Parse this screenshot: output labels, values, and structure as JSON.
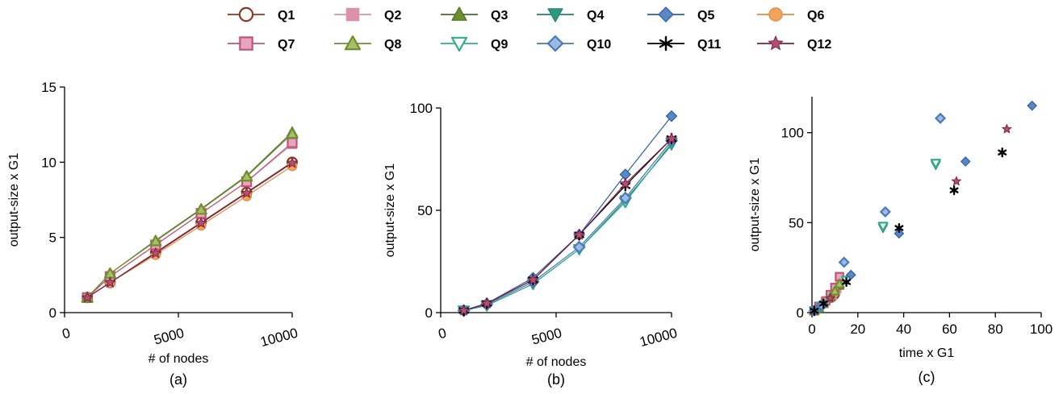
{
  "legend": [
    {
      "label": "Q1",
      "color": "#8b3a1f",
      "fill": "#c0654a",
      "marker": "circle-open",
      "line": true
    },
    {
      "label": "Q2",
      "color": "#d992a8",
      "fill": "#d992a8",
      "marker": "square",
      "line": true
    },
    {
      "label": "Q3",
      "color": "#4d6b2a",
      "fill": "#6f8f2f",
      "marker": "triangle",
      "line": true
    },
    {
      "label": "Q4",
      "color": "#21806b",
      "fill": "#2a9a7e",
      "marker": "triangle-down",
      "line": true
    },
    {
      "label": "Q5",
      "color": "#2f5ea8",
      "fill": "#5a86c4",
      "marker": "diamond",
      "line": true
    },
    {
      "label": "Q6",
      "color": "#e08a42",
      "fill": "#f2a35a",
      "marker": "circle",
      "line": true
    },
    {
      "label": "Q7",
      "color": "#c0547a",
      "fill": "#e8a6be",
      "marker": "square-open",
      "line": true
    },
    {
      "label": "Q8",
      "color": "#6f8f2f",
      "fill": "#a8be6a",
      "marker": "triangle-open",
      "line": true
    },
    {
      "label": "Q9",
      "color": "#2fae8e",
      "fill": "#ffffff",
      "marker": "triangle-down-open",
      "line": true
    },
    {
      "label": "Q10",
      "color": "#4a78bb",
      "fill": "#9bbbe4",
      "marker": "diamond-open",
      "line": true
    },
    {
      "label": "Q11",
      "color": "#000000",
      "fill": "#000000",
      "marker": "asterisk",
      "line": true
    },
    {
      "label": "Q12",
      "color": "#7a1f45",
      "fill": "#b4506e",
      "marker": "star",
      "line": true
    }
  ],
  "chart_data": [
    {
      "type": "line",
      "panel_label": "(a)",
      "xlabel": "# of nodes",
      "ylabel": "output-size x G1",
      "xlim": [
        0,
        10000
      ],
      "ylim": [
        0,
        15
      ],
      "xticks": [
        0,
        5000,
        10000
      ],
      "xtick_labels": [
        "0",
        "5000",
        "10000"
      ],
      "yticks": [
        0,
        5,
        10,
        15
      ],
      "ytick_labels": [
        "0",
        "5",
        "10",
        "15"
      ],
      "x": [
        1000,
        2000,
        4000,
        6000,
        8000,
        10000
      ],
      "series": [
        {
          "name": "Q1",
          "values": [
            1,
            2,
            4,
            6,
            8,
            10
          ]
        },
        {
          "name": "Q2",
          "values": [
            1,
            2.4,
            4.5,
            6.6,
            8.7,
            11.2
          ]
        },
        {
          "name": "Q3",
          "values": [
            1,
            2.6,
            4.8,
            6.9,
            9.1,
            12.0
          ]
        },
        {
          "name": "Q6",
          "values": [
            1,
            2,
            3.85,
            5.8,
            7.75,
            9.75
          ]
        },
        {
          "name": "Q7",
          "values": [
            1,
            2.4,
            4.5,
            6.6,
            8.7,
            11.3
          ]
        },
        {
          "name": "Q8",
          "values": [
            1,
            2.6,
            4.75,
            6.85,
            9.05,
            11.9
          ]
        },
        {
          "name": "Q12",
          "values": [
            1,
            2,
            3.95,
            5.95,
            7.95,
            9.95
          ]
        }
      ]
    },
    {
      "type": "line",
      "panel_label": "(b)",
      "xlabel": "# of nodes",
      "ylabel": "output-size x G1",
      "xlim": [
        0,
        10000
      ],
      "ylim": [
        0,
        100
      ],
      "xticks": [
        0,
        5000,
        10000
      ],
      "xtick_labels": [
        "0",
        "5000",
        "10000"
      ],
      "yticks": [
        0,
        50,
        100
      ],
      "ytick_labels": [
        "0",
        "50",
        "100"
      ],
      "x": [
        1000,
        2000,
        4000,
        6000,
        8000,
        10000
      ],
      "series": [
        {
          "name": "Q4",
          "values": [
            1,
            3.5,
            14,
            31,
            55,
            82
          ]
        },
        {
          "name": "Q5",
          "values": [
            1,
            4.5,
            17,
            38,
            67.5,
            96
          ]
        },
        {
          "name": "Q9",
          "values": [
            1,
            3.5,
            14,
            31,
            54,
            83
          ]
        },
        {
          "name": "Q10",
          "values": [
            1,
            4,
            15,
            32,
            56,
            84
          ]
        },
        {
          "name": "Q11",
          "values": [
            1,
            4.5,
            16,
            38,
            62,
            85
          ]
        },
        {
          "name": "Q12",
          "values": [
            1,
            4.5,
            16,
            38,
            63,
            85
          ]
        }
      ]
    },
    {
      "type": "scatter",
      "panel_label": "(c)",
      "xlabel": "time x G1",
      "ylabel": "output-size x G1",
      "xlim": [
        0,
        100
      ],
      "ylim": [
        0,
        120
      ],
      "xticks": [
        0,
        20,
        40,
        60,
        80,
        100
      ],
      "xtick_labels": [
        "0",
        "20",
        "40",
        "60",
        "80",
        "100"
      ],
      "yticks": [
        0,
        50,
        100
      ],
      "ytick_labels": [
        "0",
        "50",
        "100"
      ],
      "series": [
        {
          "name": "Q1",
          "points": [
            [
              1,
              1
            ],
            [
              2,
              2
            ],
            [
              4,
              4
            ],
            [
              6,
              6
            ],
            [
              8,
              8
            ],
            [
              10,
              10
            ]
          ]
        },
        {
          "name": "Q2",
          "points": [
            [
              1,
              1
            ],
            [
              3,
              3
            ],
            [
              6,
              6.5
            ],
            [
              9,
              9
            ],
            [
              11,
              13
            ],
            [
              12,
              18
            ]
          ]
        },
        {
          "name": "Q3",
          "points": [
            [
              1,
              1
            ],
            [
              3,
              3
            ],
            [
              5,
              5
            ],
            [
              8,
              9
            ],
            [
              10,
              12
            ],
            [
              12,
              15
            ]
          ]
        },
        {
          "name": "Q6",
          "points": [
            [
              1,
              1
            ],
            [
              2,
              2
            ],
            [
              4,
              4
            ],
            [
              6,
              6
            ],
            [
              8,
              8
            ],
            [
              9,
              10
            ]
          ]
        },
        {
          "name": "Q7",
          "points": [
            [
              1,
              1
            ],
            [
              3,
              3.5
            ],
            [
              6,
              6.5
            ],
            [
              8,
              10
            ],
            [
              10,
              14
            ],
            [
              12,
              20
            ]
          ]
        },
        {
          "name": "Q8",
          "points": [
            [
              1,
              1
            ],
            [
              3,
              2.5
            ],
            [
              5,
              5
            ],
            [
              8,
              8.5
            ],
            [
              10,
              12
            ],
            [
              12,
              16
            ]
          ]
        },
        {
          "name": "Q12",
          "points": [
            [
              1,
              1
            ],
            [
              4,
              4.5
            ],
            [
              8,
              8
            ],
            [
              15,
              18
            ],
            [
              63,
              73
            ],
            [
              85,
              102
            ]
          ]
        },
        {
          "name": "Q4",
          "points": [
            [
              1,
              1
            ],
            [
              4,
              3.5
            ],
            [
              15,
              18
            ],
            [
              31,
              47
            ],
            [
              54,
              82
            ]
          ]
        },
        {
          "name": "Q9",
          "points": [
            [
              1,
              1
            ],
            [
              4,
              3.5
            ],
            [
              15,
              18
            ],
            [
              31,
              48
            ],
            [
              54,
              83
            ]
          ]
        },
        {
          "name": "Q5",
          "points": [
            [
              1,
              1
            ],
            [
              5,
              4.5
            ],
            [
              17,
              21
            ],
            [
              38,
              44
            ],
            [
              67,
              84
            ],
            [
              96,
              115
            ]
          ]
        },
        {
          "name": "Q10",
          "points": [
            [
              1,
              1
            ],
            [
              4,
              4
            ],
            [
              14,
              28
            ],
            [
              32,
              56
            ],
            [
              56,
              108
            ]
          ]
        },
        {
          "name": "Q11",
          "points": [
            [
              1,
              1
            ],
            [
              5,
              5
            ],
            [
              15,
              17
            ],
            [
              38,
              47
            ],
            [
              62,
              68
            ],
            [
              83,
              89
            ]
          ]
        }
      ]
    }
  ]
}
